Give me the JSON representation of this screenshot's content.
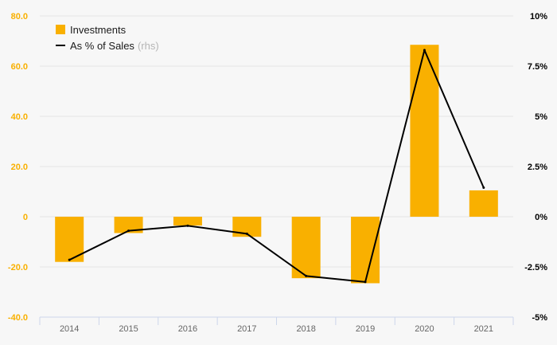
{
  "chart_data": {
    "type": "bar",
    "categories": [
      "2014",
      "2015",
      "2016",
      "2017",
      "2018",
      "2019",
      "2020",
      "2021"
    ],
    "series": [
      {
        "name": "Investments",
        "type": "bar",
        "axis": "left",
        "values": [
          -18.0,
          -6.5,
          -3.5,
          -8.0,
          -24.5,
          -26.5,
          68.5,
          10.5
        ]
      },
      {
        "name": "As % of Sales",
        "type": "line",
        "axis": "right",
        "values": [
          -2.15,
          -0.7,
          -0.45,
          -0.85,
          -2.95,
          -3.25,
          8.3,
          1.45
        ]
      }
    ],
    "y_left": {
      "min": -40,
      "max": 80,
      "ticks": [
        "80.0",
        "60.0",
        "40.0",
        "20.0",
        "0",
        "-20.0",
        "-40.0"
      ]
    },
    "y_right": {
      "min": -5,
      "max": 10,
      "ticks": [
        "10%",
        "7.5%",
        "5%",
        "2.5%",
        "0%",
        "-2.5%",
        "-5%"
      ]
    },
    "legend": {
      "position": "top-left",
      "line_note": "(rhs)"
    },
    "colors": {
      "bar": "#f9b000",
      "line": "#000000",
      "left_axis_text": "#f9b000",
      "right_axis_text": "#000000",
      "grid": "#e6e6e6",
      "x_axis": "#ccd6eb",
      "x_text": "#666666"
    }
  }
}
